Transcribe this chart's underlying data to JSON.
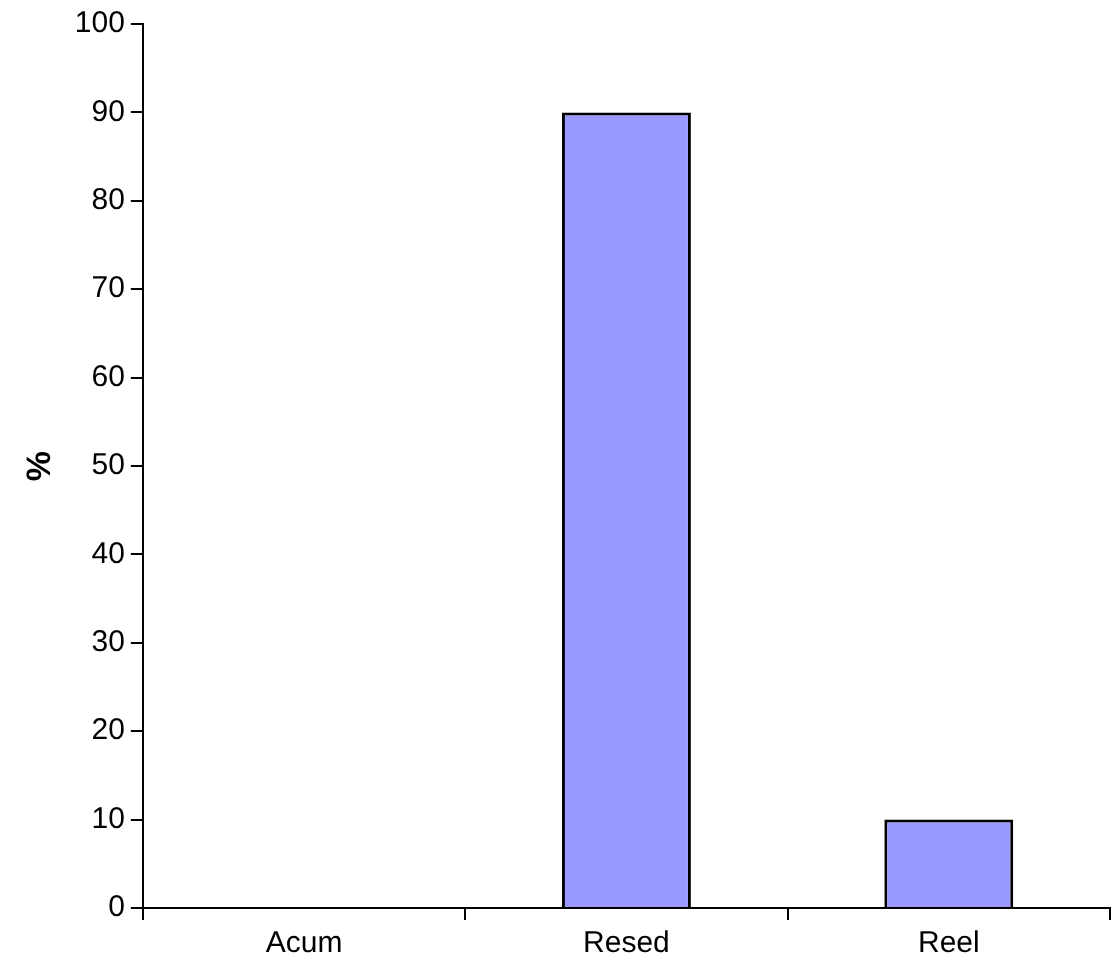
{
  "chart_data": {
    "type": "bar",
    "ylabel": "%",
    "categories": [
      "Acum",
      "Resed",
      "Reel"
    ],
    "values": [
      0,
      90,
      10
    ],
    "color": "#9999ff",
    "ylim": [
      0,
      100
    ],
    "yticks": [
      0,
      10,
      20,
      30,
      40,
      50,
      60,
      70,
      80,
      90,
      100
    ],
    "grid": false,
    "legend": false
  }
}
